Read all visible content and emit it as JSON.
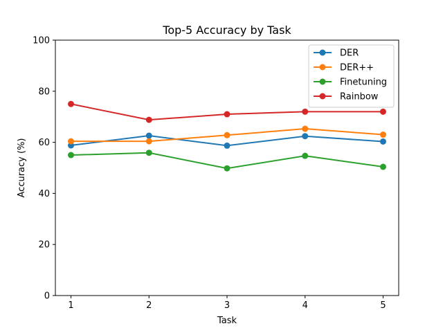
{
  "chart_data": {
    "type": "line",
    "title": "Top-5 Accuracy by Task",
    "xlabel": "Task",
    "ylabel": "Accuracy (%)",
    "x": [
      1,
      2,
      3,
      4,
      5
    ],
    "xticks": [
      "1",
      "2",
      "3",
      "4",
      "5"
    ],
    "xlim": [
      0.8,
      5.2
    ],
    "ylim": [
      0,
      100
    ],
    "yticks": [
      "0",
      "20",
      "40",
      "60",
      "80",
      "100"
    ],
    "grid": false,
    "legend_position": "top-right",
    "series": [
      {
        "name": "DER",
        "color": "#1f77b4",
        "values": [
          58.8,
          62.6,
          58.7,
          62.4,
          60.3
        ]
      },
      {
        "name": "DER++",
        "color": "#ff7f0e",
        "values": [
          60.4,
          60.4,
          62.8,
          65.3,
          63.0
        ]
      },
      {
        "name": "Finetuning",
        "color": "#2ca02c",
        "values": [
          55.0,
          55.9,
          49.8,
          54.7,
          50.4
        ]
      },
      {
        "name": "Rainbow",
        "color": "#d62728",
        "values": [
          75.0,
          68.8,
          71.0,
          72.0,
          72.0
        ]
      }
    ]
  }
}
